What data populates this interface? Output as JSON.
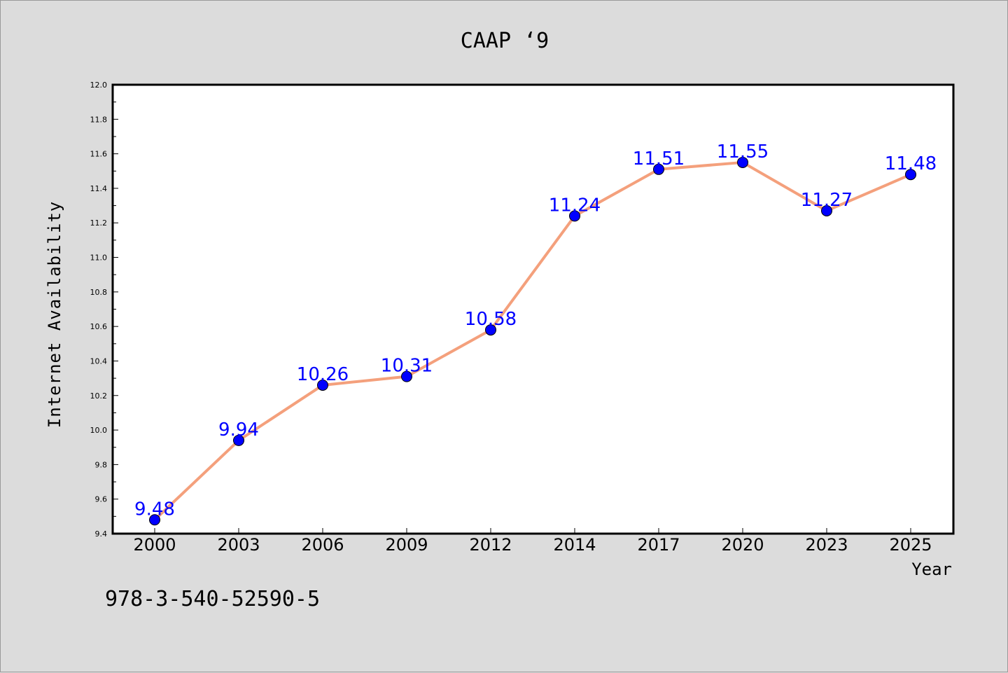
{
  "chart_data": {
    "type": "line",
    "title": "CAAP  ‘9",
    "xlabel": "Year",
    "ylabel": "Internet Availability",
    "x": [
      "2000",
      "2003",
      "2006",
      "2009",
      "2012",
      "2014",
      "2017",
      "2020",
      "2023",
      "2025"
    ],
    "series": [
      {
        "values": [
          9.48,
          9.94,
          10.26,
          10.31,
          10.58,
          11.24,
          11.51,
          11.55,
          11.27,
          11.48
        ]
      }
    ],
    "data_labels": [
      "9.48",
      "9.94",
      "10.26",
      "10.31",
      "10.58",
      "11.24",
      "11.51",
      "11.55",
      "11.27",
      "11.48"
    ],
    "ylim": [
      9.4,
      12.0
    ],
    "yticks": [
      "9.4",
      "9.6",
      "9.8",
      "10.0",
      "10.2",
      "10.4",
      "10.6",
      "10.8",
      "11.0",
      "11.2",
      "11.4",
      "11.6",
      "11.8",
      "12.0"
    ],
    "grid": false,
    "colors": {
      "line": "#f4a07c",
      "marker": "#0000ff",
      "label": "#0000ff"
    }
  },
  "footer": {
    "isbn": "978-3-540-52590-5"
  }
}
